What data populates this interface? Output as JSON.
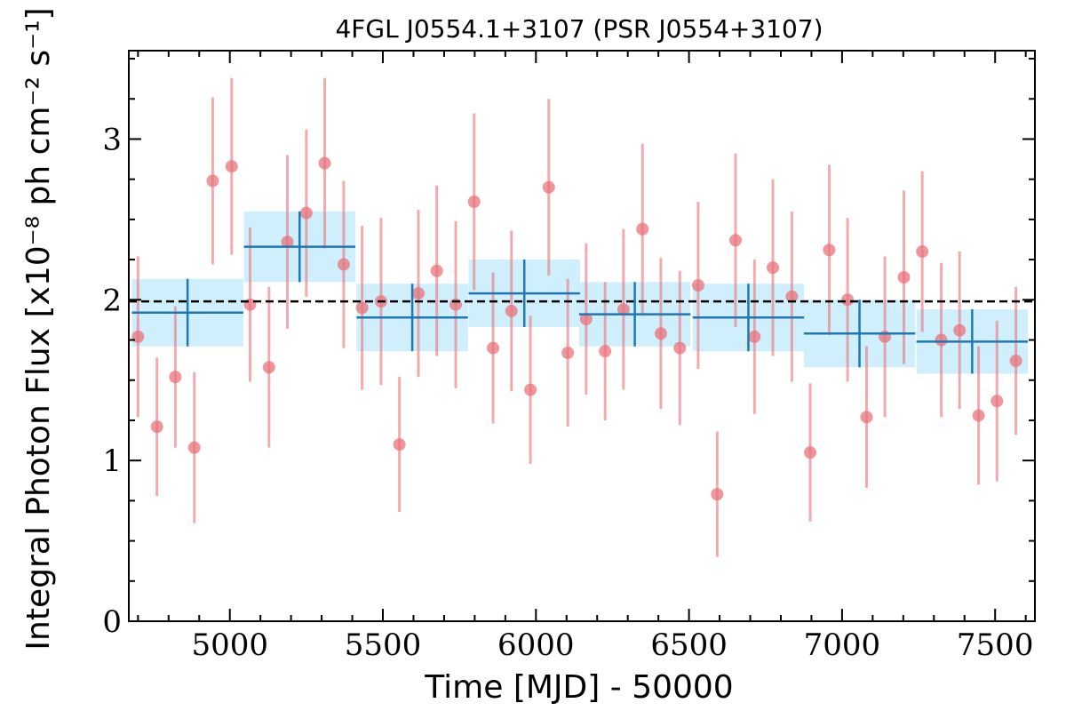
{
  "chart_data": {
    "type": "scatter",
    "title": "4FGL J0554.1+3107 (PSR J0554+3107)",
    "xlabel": "Time [MJD] - 50000",
    "ylabel": "Integral Photon Flux [x10⁻⁸ ph cm⁻² s⁻¹]",
    "xlim": [
      4670,
      7630
    ],
    "ylim": [
      0,
      3.55
    ],
    "x_ticks": [
      5000,
      5500,
      6000,
      6500,
      7000,
      7500
    ],
    "y_ticks": [
      0,
      1,
      2,
      3
    ],
    "reference_line": {
      "y": 1.99,
      "style": "dashed",
      "color": "#000000"
    },
    "colors": {
      "points": "#e8737a",
      "bins": "#1f77b4",
      "bin_fill": "#cdeefc"
    },
    "series": [
      {
        "type": "errorbar-points",
        "x": [
          4700,
          4762,
          4822,
          4884,
          4944,
          5006,
          5066,
          5128,
          5188,
          5250,
          5310,
          5372,
          5432,
          5494,
          5554,
          5616,
          5676,
          5738,
          5798,
          5860,
          5920,
          5982,
          6042,
          6104,
          6164,
          6226,
          6286,
          6348,
          6408,
          6470,
          6530,
          6592,
          6652,
          6714,
          6774,
          6836,
          6896,
          6958,
          7018,
          7080,
          7140,
          7202,
          7262,
          7324,
          7384,
          7446,
          7506,
          7568
        ],
        "y": [
          1.77,
          1.21,
          1.52,
          1.08,
          2.74,
          2.83,
          1.97,
          1.58,
          2.36,
          2.54,
          2.85,
          2.22,
          1.95,
          1.99,
          1.1,
          2.04,
          2.18,
          1.97,
          2.61,
          1.7,
          1.93,
          1.44,
          2.7,
          1.67,
          1.88,
          1.68,
          1.94,
          2.44,
          1.79,
          1.7,
          2.09,
          0.79,
          2.37,
          1.77,
          2.2,
          2.02,
          1.05,
          2.31,
          2.0,
          1.27,
          1.77,
          2.14,
          2.3,
          1.75,
          1.81,
          1.28,
          1.37,
          1.62
        ],
        "yerr": [
          0.5,
          0.43,
          0.44,
          0.47,
          0.52,
          0.55,
          0.48,
          0.5,
          0.54,
          0.52,
          0.53,
          0.52,
          0.51,
          0.52,
          0.42,
          0.52,
          0.53,
          0.52,
          0.55,
          0.47,
          0.5,
          0.46,
          0.55,
          0.46,
          0.47,
          0.43,
          0.5,
          0.53,
          0.47,
          0.48,
          0.52,
          0.39,
          0.54,
          0.48,
          0.55,
          0.53,
          0.43,
          0.53,
          0.51,
          0.44,
          0.5,
          0.54,
          0.5,
          0.48,
          0.49,
          0.43,
          0.5,
          0.46
        ]
      },
      {
        "type": "binned",
        "x": [
          4862,
          5228,
          5596,
          5962,
          6323,
          6694,
          7057,
          7425
        ],
        "xerr": [
          182,
          182,
          182,
          182,
          182,
          182,
          182,
          182
        ],
        "y": [
          1.92,
          2.33,
          1.89,
          2.04,
          1.91,
          1.89,
          1.79,
          1.74
        ],
        "yerr": [
          0.21,
          0.22,
          0.21,
          0.21,
          0.2,
          0.21,
          0.21,
          0.2
        ]
      }
    ]
  }
}
